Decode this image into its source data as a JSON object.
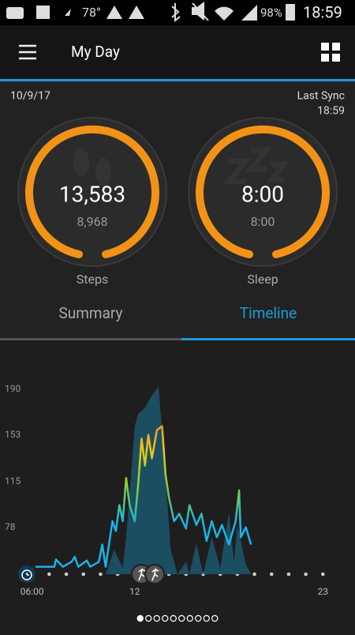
{
  "status_bar": {
    "temperature": "78°",
    "battery": "98%",
    "time": "18:59"
  },
  "header": {
    "title": "My Day"
  },
  "date": "10/9/17",
  "sync": {
    "label": "Last Sync",
    "time": "18:59"
  },
  "rings": [
    {
      "value": "13,583",
      "goal": "8,968",
      "label": "Steps"
    },
    {
      "value": "8:00",
      "goal": "8:00",
      "label": "Sleep"
    }
  ],
  "tabs": [
    "Summary",
    "Timeline"
  ],
  "chart_data": {
    "type": "line",
    "xlim": [
      5,
      24
    ],
    "ylim": [
      40,
      204
    ],
    "xticks": [
      {
        "value": 6,
        "label": "06:00"
      },
      12,
      23
    ],
    "yticks": [
      78,
      115,
      153,
      190
    ],
    "series": [
      {
        "type": "area",
        "color": "#1c4e62",
        "x": [
          10.3,
          10.8,
          11.3,
          11.5,
          12.0,
          12.2,
          12.6,
          13.0,
          13.4,
          13.8,
          14.1,
          14.5,
          15.0,
          15.2,
          15.6,
          16.0,
          16.5,
          17.0,
          17.5,
          17.8,
          18.0,
          18.5,
          18.8
        ],
        "values": [
          40,
          60,
          45,
          70,
          160,
          170,
          175,
          185,
          192,
          120,
          60,
          40,
          50,
          40,
          65,
          40,
          70,
          45,
          90,
          50,
          80,
          48,
          40
        ]
      },
      {
        "type": "line",
        "colors": [
          "#18b4e8",
          "#7fd13b",
          "#f2c419",
          "#f0881c"
        ],
        "x": [
          6.2,
          7.3,
          7.4,
          7.8,
          8.3,
          8.5,
          8.7,
          9.2,
          9.4,
          9.9,
          10.1,
          10.3,
          10.7,
          10.9,
          11.1,
          11.3,
          11.5,
          11.7,
          12.0,
          12.2,
          12.4,
          12.6,
          12.8,
          13.0,
          13.3,
          13.6,
          13.8,
          14.0,
          14.3,
          14.6,
          15.0,
          15.2,
          15.6,
          15.9,
          16.2,
          16.5,
          16.8,
          17.1,
          17.5,
          17.9,
          18.1,
          18.2,
          18.5,
          18.8
        ],
        "values": [
          46,
          46,
          52,
          46,
          50,
          54,
          46,
          51,
          46,
          50,
          64,
          46,
          83,
          75,
          96,
          83,
          118,
          96,
          83,
          112,
          150,
          128,
          153,
          134,
          157,
          160,
          121,
          102,
          83,
          89,
          77,
          96,
          80,
          89,
          67,
          83,
          70,
          80,
          64,
          83,
          108,
          70,
          78,
          64
        ]
      }
    ]
  },
  "pager": {
    "pages": 10,
    "active": 0
  }
}
